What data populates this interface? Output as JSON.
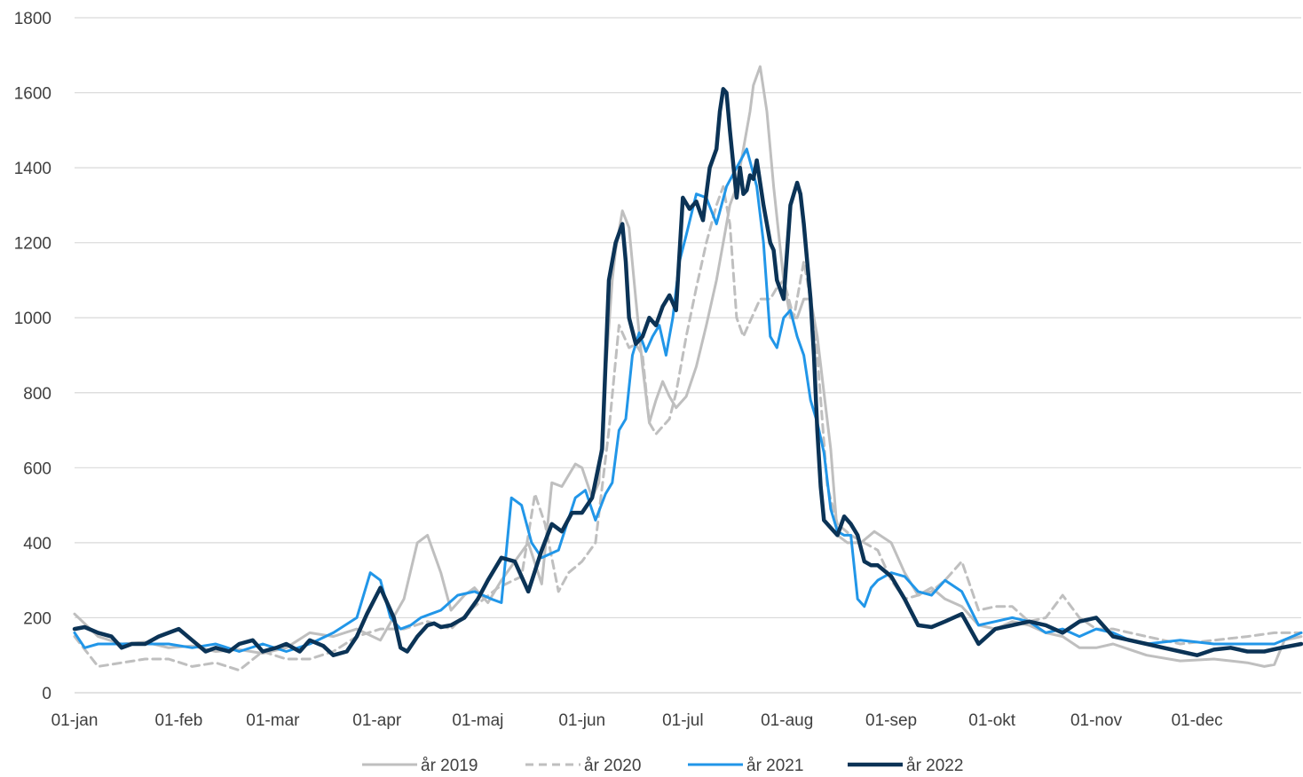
{
  "chart_data": {
    "type": "line",
    "title": "",
    "xlabel": "",
    "ylabel": "",
    "ylim": [
      0,
      1800
    ],
    "yticks": [
      0,
      200,
      400,
      600,
      800,
      1000,
      1200,
      1400,
      1600,
      1800
    ],
    "xlim": [
      1,
      366
    ],
    "xtick_labels": [
      "01-jan",
      "01-feb",
      "01-mar",
      "01-apr",
      "01-maj",
      "01-jun",
      "01-jul",
      "01-aug",
      "01-sep",
      "01-okt",
      "01-nov",
      "01-dec"
    ],
    "xtick_days": [
      1,
      32,
      60,
      91,
      121,
      152,
      182,
      213,
      244,
      274,
      305,
      335
    ],
    "grid": "horizontal",
    "legend_position": "bottom",
    "series": [
      {
        "name": "år 2019",
        "color": "#bfbfbf",
        "style": "solid",
        "x": [
          1,
          8,
          15,
          22,
          29,
          36,
          43,
          50,
          57,
          64,
          71,
          78,
          85,
          92,
          99,
          103,
          106,
          110,
          113,
          117,
          120,
          124,
          128,
          132,
          136,
          140,
          143,
          146,
          150,
          152,
          155,
          157,
          159,
          161,
          162,
          164,
          166,
          168,
          170,
          172,
          174,
          176,
          178,
          180,
          183,
          186,
          189,
          192,
          194,
          196,
          198,
          200,
          202,
          203,
          205,
          207,
          209,
          212,
          214,
          216,
          218,
          220,
          222,
          224,
          226,
          228,
          231,
          235,
          239,
          244,
          248,
          252,
          256,
          260,
          265,
          270,
          275,
          280,
          285,
          290,
          295,
          300,
          305,
          310,
          320,
          330,
          340,
          350,
          355,
          358,
          361,
          366
        ],
        "y": [
          210,
          150,
          130,
          135,
          120,
          125,
          110,
          115,
          105,
          120,
          160,
          150,
          170,
          140,
          250,
          400,
          420,
          320,
          220,
          260,
          280,
          240,
          300,
          350,
          400,
          290,
          560,
          550,
          610,
          600,
          520,
          560,
          850,
          1100,
          1180,
          1285,
          1240,
          1050,
          870,
          720,
          780,
          830,
          790,
          760,
          790,
          870,
          980,
          1100,
          1200,
          1300,
          1350,
          1450,
          1550,
          1620,
          1670,
          1550,
          1350,
          1100,
          1000,
          1000,
          1050,
          1050,
          950,
          800,
          650,
          420,
          400,
          400,
          430,
          400,
          320,
          260,
          280,
          250,
          230,
          180,
          170,
          190,
          180,
          160,
          150,
          120,
          120,
          130,
          100,
          85,
          90,
          80,
          70,
          75,
          140,
          150
        ]
      },
      {
        "name": "år 2020",
        "color": "#bfbfbf",
        "style": "dashed",
        "x": [
          1,
          8,
          15,
          22,
          29,
          36,
          43,
          50,
          57,
          64,
          71,
          78,
          85,
          92,
          99,
          106,
          113,
          120,
          127,
          134,
          138,
          141,
          145,
          148,
          152,
          156,
          160,
          163,
          166,
          168,
          170,
          172,
          174,
          176,
          178,
          180,
          183,
          186,
          189,
          192,
          194,
          196,
          198,
          200,
          202,
          205,
          208,
          210,
          212,
          215,
          218,
          220,
          222,
          225,
          228,
          232,
          236,
          240,
          244,
          248,
          252,
          256,
          260,
          265,
          270,
          275,
          280,
          285,
          290,
          295,
          300,
          305,
          310,
          320,
          330,
          340,
          350,
          358,
          366
        ],
        "y": [
          150,
          70,
          80,
          90,
          90,
          70,
          80,
          60,
          110,
          90,
          90,
          110,
          150,
          170,
          170,
          190,
          170,
          230,
          280,
          310,
          530,
          450,
          270,
          320,
          350,
          400,
          700,
          980,
          920,
          930,
          900,
          720,
          690,
          710,
          730,
          800,
          950,
          1080,
          1200,
          1300,
          1350,
          1250,
          1000,
          950,
          990,
          1050,
          1050,
          1080,
          1100,
          1000,
          1150,
          1050,
          900,
          550,
          450,
          420,
          400,
          380,
          300,
          250,
          260,
          270,
          300,
          350,
          220,
          230,
          230,
          190,
          200,
          260,
          200,
          170,
          170,
          150,
          130,
          140,
          150,
          160,
          160
        ]
      },
      {
        "name": "år 2021",
        "color": "#2196e8",
        "style": "solid",
        "x": [
          1,
          4,
          8,
          15,
          22,
          29,
          36,
          43,
          50,
          57,
          64,
          71,
          78,
          85,
          89,
          92,
          95,
          98,
          101,
          104,
          107,
          110,
          115,
          120,
          125,
          128,
          131,
          134,
          137,
          140,
          145,
          150,
          153,
          156,
          159,
          161,
          163,
          165,
          167,
          169,
          171,
          173,
          175,
          177,
          179,
          181,
          183,
          186,
          189,
          192,
          195,
          198,
          201,
          204,
          206,
          208,
          210,
          212,
          214,
          216,
          218,
          220,
          222,
          224,
          226,
          228,
          230,
          232,
          234,
          236,
          238,
          240,
          244,
          248,
          252,
          256,
          260,
          265,
          270,
          275,
          280,
          285,
          290,
          295,
          300,
          305,
          310,
          315,
          320,
          330,
          340,
          350,
          358,
          366
        ],
        "y": [
          160,
          120,
          130,
          130,
          130,
          130,
          120,
          130,
          110,
          130,
          110,
          130,
          160,
          200,
          320,
          300,
          200,
          170,
          180,
          200,
          210,
          220,
          260,
          270,
          250,
          240,
          520,
          500,
          400,
          360,
          380,
          520,
          540,
          460,
          530,
          560,
          700,
          730,
          900,
          960,
          910,
          950,
          980,
          900,
          1000,
          1150,
          1220,
          1330,
          1320,
          1250,
          1350,
          1400,
          1450,
          1350,
          1200,
          950,
          920,
          1000,
          1020,
          950,
          900,
          780,
          720,
          640,
          490,
          430,
          420,
          420,
          250,
          230,
          280,
          300,
          320,
          310,
          270,
          260,
          300,
          270,
          180,
          190,
          200,
          190,
          160,
          170,
          150,
          170,
          160,
          140,
          130,
          140,
          130,
          130,
          130,
          160
        ]
      },
      {
        "name": "år 2022",
        "color": "#0b3356",
        "style": "solid",
        "x": [
          1,
          4,
          8,
          12,
          15,
          18,
          22,
          26,
          29,
          32,
          36,
          40,
          43,
          47,
          50,
          54,
          57,
          61,
          64,
          68,
          71,
          75,
          78,
          82,
          85,
          88,
          92,
          96,
          98,
          100,
          103,
          106,
          108,
          110,
          113,
          117,
          121,
          124,
          128,
          132,
          136,
          140,
          143,
          146,
          149,
          152,
          155,
          158,
          160,
          162,
          164,
          165,
          166,
          168,
          170,
          172,
          174,
          176,
          178,
          180,
          182,
          184,
          186,
          188,
          190,
          192,
          193,
          194,
          195,
          196,
          198,
          199,
          200,
          201,
          202,
          203,
          204,
          206,
          207,
          208,
          209,
          210,
          212,
          214,
          216,
          217,
          218,
          219,
          220,
          221,
          222,
          223,
          224,
          226,
          228,
          230,
          232,
          234,
          236,
          238,
          240,
          244,
          248,
          252,
          256,
          260,
          265,
          270,
          275,
          280,
          285,
          290,
          295,
          300,
          305,
          310,
          315,
          320,
          325,
          330,
          335,
          340,
          345,
          350,
          355,
          360,
          366
        ],
        "y": [
          170,
          175,
          160,
          150,
          120,
          130,
          130,
          150,
          160,
          170,
          140,
          110,
          120,
          110,
          130,
          140,
          110,
          120,
          130,
          110,
          140,
          125,
          100,
          110,
          150,
          210,
          280,
          200,
          120,
          110,
          150,
          180,
          185,
          175,
          180,
          200,
          250,
          300,
          360,
          350,
          270,
          380,
          450,
          430,
          480,
          480,
          520,
          650,
          1100,
          1200,
          1250,
          1150,
          1000,
          930,
          950,
          1000,
          980,
          1030,
          1060,
          1020,
          1320,
          1290,
          1310,
          1260,
          1400,
          1450,
          1550,
          1610,
          1600,
          1500,
          1320,
          1400,
          1330,
          1340,
          1380,
          1370,
          1420,
          1300,
          1250,
          1200,
          1180,
          1100,
          1050,
          1300,
          1360,
          1330,
          1250,
          1150,
          1050,
          900,
          700,
          550,
          460,
          440,
          420,
          470,
          450,
          420,
          350,
          340,
          340,
          310,
          250,
          180,
          175,
          190,
          210,
          130,
          170,
          180,
          190,
          180,
          160,
          190,
          200,
          150,
          140,
          130,
          120,
          110,
          100,
          115,
          120,
          110,
          110,
          120,
          130
        ]
      }
    ]
  }
}
